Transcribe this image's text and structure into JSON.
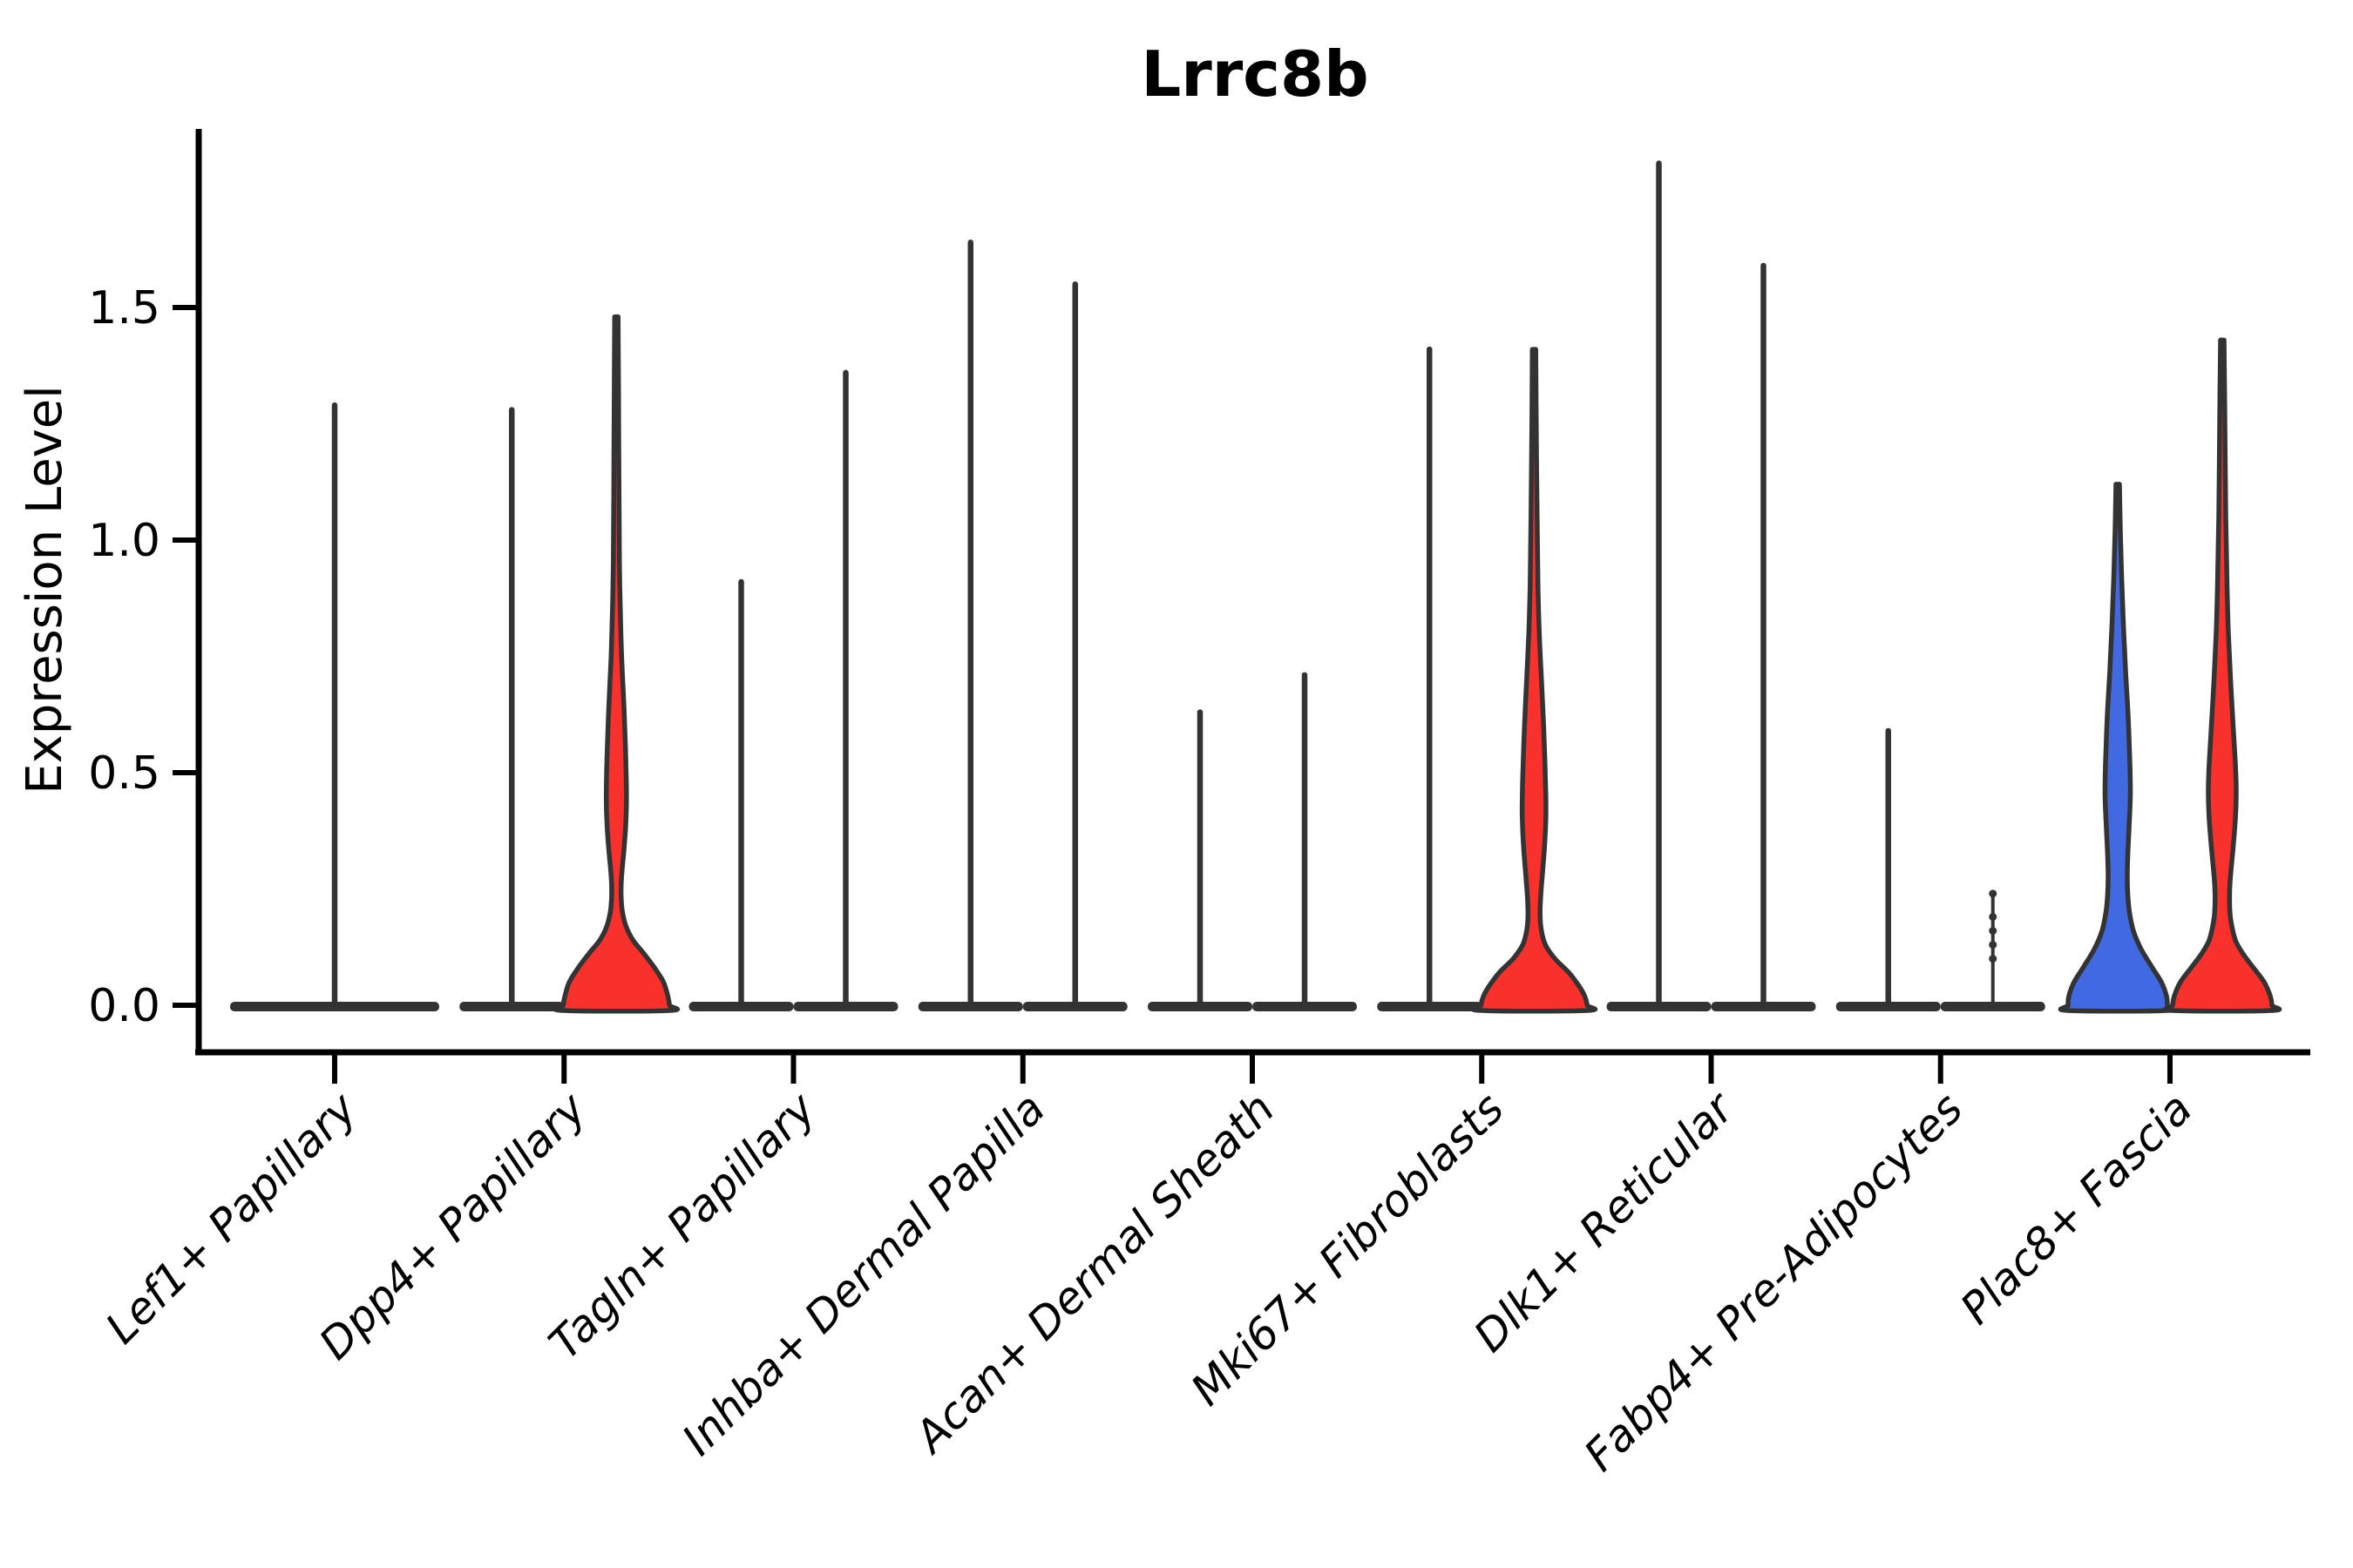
{
  "chart_data": {
    "type": "violin",
    "title": "Lrrc8b",
    "ylabel": "Expression Level",
    "xlabel": "",
    "yticks": [
      {
        "value": 0.0,
        "label": "0.0"
      },
      {
        "value": 0.5,
        "label": "0.5"
      },
      {
        "value": 1.0,
        "label": "1.0"
      },
      {
        "value": 1.5,
        "label": "1.5"
      }
    ],
    "ylim": [
      -0.06,
      1.88
    ],
    "grid": false,
    "legend": "none",
    "categories": [
      "Lef1+ Papillary",
      "Dpp4+ Papillary",
      "Tagln+ Papillary",
      "Inhba+ Dermal Papilla",
      "Acan+ Dermal Sheath",
      "Mki67+ Fibroblasts",
      "Dlk1+ Reticular",
      "Fabp4+ Pre-Adipocytes",
      "Plac8+ Fascia"
    ],
    "colors": {
      "blue_fill": "#4169E1",
      "red_fill": "#F8312D",
      "outline": "#333333",
      "background": "#ffffff"
    },
    "violins": [
      {
        "category": "Lef1+ Papillary",
        "cat_index": 0,
        "slot": "center",
        "style": "collapsed",
        "max": 1.29,
        "base_halfwidth": 120
      },
      {
        "category": "Dpp4+ Papillary",
        "cat_index": 1,
        "slot": "left",
        "style": "collapsed",
        "max": 1.28,
        "base_halfwidth": 60
      },
      {
        "category": "Dpp4+ Papillary",
        "cat_index": 1,
        "slot": "right",
        "style": "shaped",
        "fill": "red_fill",
        "max": 1.48,
        "profile": [
          [
            1.48,
            2
          ],
          [
            1.3,
            2.5
          ],
          [
            1.1,
            3
          ],
          [
            0.95,
            3.5
          ],
          [
            0.85,
            4.5
          ],
          [
            0.75,
            6
          ],
          [
            0.65,
            8.5
          ],
          [
            0.55,
            10.5
          ],
          [
            0.47,
            11.5
          ],
          [
            0.43,
            11.5
          ],
          [
            0.38,
            10.5
          ],
          [
            0.33,
            8.5
          ],
          [
            0.29,
            6.5
          ],
          [
            0.26,
            5.5
          ],
          [
            0.23,
            5.5
          ],
          [
            0.2,
            7
          ],
          [
            0.17,
            11
          ],
          [
            0.14,
            19
          ],
          [
            0.11,
            32
          ],
          [
            0.08,
            44
          ],
          [
            0.05,
            54
          ],
          [
            0.02,
            59
          ],
          [
            0.0,
            61
          ]
        ]
      },
      {
        "category": "Tagln+ Papillary",
        "cat_index": 2,
        "slot": "left",
        "style": "collapsed",
        "max": 0.91,
        "base_halfwidth": 60
      },
      {
        "category": "Tagln+ Papillary",
        "cat_index": 2,
        "slot": "right",
        "style": "collapsed",
        "max": 1.36,
        "base_halfwidth": 60
      },
      {
        "category": "Inhba+ Dermal Papilla",
        "cat_index": 3,
        "slot": "left",
        "style": "collapsed",
        "max": 1.64,
        "base_halfwidth": 60
      },
      {
        "category": "Inhba+ Dermal Papilla",
        "cat_index": 3,
        "slot": "right",
        "style": "collapsed",
        "max": 1.55,
        "base_halfwidth": 60
      },
      {
        "category": "Acan+ Dermal Sheath",
        "cat_index": 4,
        "slot": "left",
        "style": "collapsed",
        "max": 0.63,
        "base_halfwidth": 60
      },
      {
        "category": "Acan+ Dermal Sheath",
        "cat_index": 4,
        "slot": "right",
        "style": "collapsed",
        "max": 0.71,
        "base_halfwidth": 60
      },
      {
        "category": "Mki67+ Fibroblasts",
        "cat_index": 5,
        "slot": "left",
        "style": "collapsed",
        "max": 1.41,
        "base_halfwidth": 60
      },
      {
        "category": "Mki67+ Fibroblasts",
        "cat_index": 5,
        "slot": "right",
        "style": "shaped",
        "fill": "red_fill",
        "max": 1.41,
        "profile": [
          [
            1.41,
            2
          ],
          [
            1.25,
            2.5
          ],
          [
            1.05,
            3.5
          ],
          [
            0.9,
            4.5
          ],
          [
            0.8,
            6
          ],
          [
            0.7,
            8.5
          ],
          [
            0.6,
            11
          ],
          [
            0.52,
            12.5
          ],
          [
            0.45,
            13.5
          ],
          [
            0.4,
            13.5
          ],
          [
            0.34,
            12
          ],
          [
            0.28,
            9.5
          ],
          [
            0.23,
            7.5
          ],
          [
            0.19,
            7
          ],
          [
            0.16,
            8.5
          ],
          [
            0.13,
            13
          ],
          [
            0.1,
            24
          ],
          [
            0.07,
            40
          ],
          [
            0.04,
            52
          ],
          [
            0.02,
            58
          ],
          [
            0.0,
            61
          ]
        ]
      },
      {
        "category": "Dlk1+ Reticular",
        "cat_index": 6,
        "slot": "left",
        "style": "collapsed",
        "max": 1.81,
        "base_halfwidth": 60
      },
      {
        "category": "Dlk1+ Reticular",
        "cat_index": 6,
        "slot": "right",
        "style": "collapsed",
        "max": 1.59,
        "base_halfwidth": 60
      },
      {
        "category": "Fabp4+ Pre-Adipocytes",
        "cat_index": 7,
        "slot": "left",
        "style": "collapsed",
        "max": 0.59,
        "base_halfwidth": 60
      },
      {
        "category": "Fabp4+ Pre-Adipocytes",
        "cat_index": 7,
        "slot": "right",
        "style": "collapsed",
        "max": 0.24,
        "base_halfwidth": 60,
        "thin": true,
        "points": [
          0.24,
          0.19,
          0.16,
          0.13,
          0.1
        ]
      },
      {
        "category": "Plac8+ Fascia",
        "cat_index": 8,
        "slot": "left",
        "style": "shaped",
        "fill": "blue_fill",
        "max": 1.12,
        "profile": [
          [
            1.12,
            2
          ],
          [
            1.02,
            3
          ],
          [
            0.92,
            4.5
          ],
          [
            0.82,
            6.5
          ],
          [
            0.72,
            9
          ],
          [
            0.62,
            12
          ],
          [
            0.52,
            14
          ],
          [
            0.45,
            14.5
          ],
          [
            0.38,
            13
          ],
          [
            0.32,
            11.5
          ],
          [
            0.28,
            11
          ],
          [
            0.24,
            11.5
          ],
          [
            0.2,
            13.5
          ],
          [
            0.16,
            18
          ],
          [
            0.12,
            27
          ],
          [
            0.08,
            40
          ],
          [
            0.05,
            50
          ],
          [
            0.02,
            56
          ],
          [
            0.0,
            57
          ]
        ]
      },
      {
        "category": "Plac8+ Fascia",
        "cat_index": 8,
        "slot": "right",
        "style": "shaped",
        "fill": "red_fill",
        "max": 1.43,
        "profile": [
          [
            1.43,
            2
          ],
          [
            1.25,
            3
          ],
          [
            1.05,
            4
          ],
          [
            0.9,
            5.5
          ],
          [
            0.8,
            7
          ],
          [
            0.7,
            9.5
          ],
          [
            0.6,
            12.5
          ],
          [
            0.52,
            15
          ],
          [
            0.46,
            16
          ],
          [
            0.4,
            15
          ],
          [
            0.34,
            12.5
          ],
          [
            0.29,
            10
          ],
          [
            0.25,
            8.5
          ],
          [
            0.21,
            8.5
          ],
          [
            0.18,
            10
          ],
          [
            0.14,
            15
          ],
          [
            0.11,
            24
          ],
          [
            0.08,
            36
          ],
          [
            0.05,
            48
          ],
          [
            0.02,
            55
          ],
          [
            0.0,
            57
          ]
        ]
      }
    ]
  }
}
